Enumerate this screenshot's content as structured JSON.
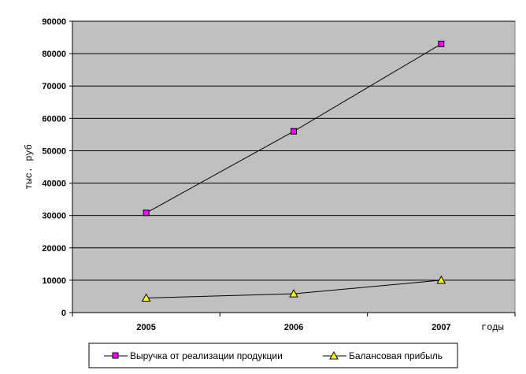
{
  "chart_data": {
    "type": "line",
    "title": "",
    "xlabel": "годы",
    "ylabel": "тыс. руб",
    "categories": [
      "2005",
      "2006",
      "2007"
    ],
    "ylim": [
      0,
      90000
    ],
    "yticks": [
      0,
      10000,
      20000,
      30000,
      40000,
      50000,
      60000,
      70000,
      80000,
      90000
    ],
    "grid": true,
    "legend_position": "bottom",
    "series": [
      {
        "name": "Выручка от реализации продукции",
        "values": [
          30800,
          56000,
          83000
        ],
        "color": "#ff00ff",
        "marker": "square"
      },
      {
        "name": "Балансовая прибыль",
        "values": [
          4500,
          5800,
          10000
        ],
        "color": "#ffff00",
        "marker": "triangle"
      }
    ],
    "plot_background": "#c0c0c0"
  }
}
